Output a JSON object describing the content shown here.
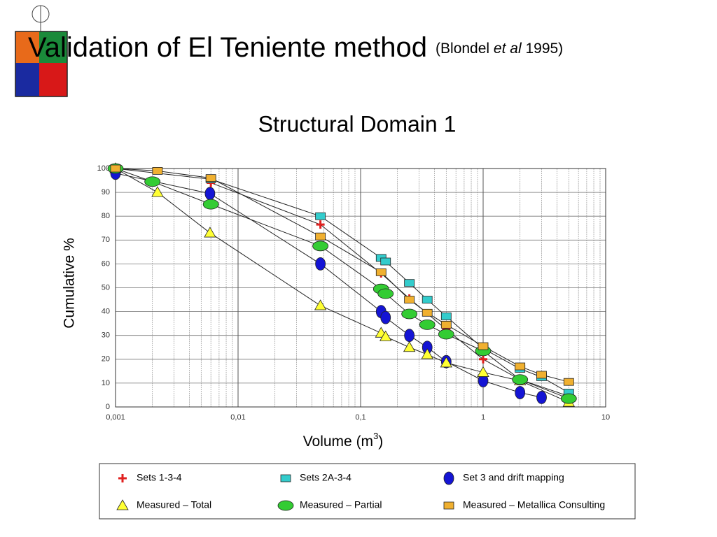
{
  "chart_data": {
    "type": "line",
    "title": "Validation of El Teniente method",
    "citation_pre": "(Blondel ",
    "citation_em": "et al",
    "citation_post": " 1995)",
    "subtitle": "Structural Domain 1",
    "y_label": "Cumulative %",
    "x_label": "Volume (m",
    "x_label_sup": "3",
    "x_label_end": ")",
    "x_log": true,
    "grid": true,
    "xlim": [
      0.001,
      10
    ],
    "xticks": [
      {
        "value": 0.001,
        "label": "0,001"
      },
      {
        "value": 0.01,
        "label": "0,01"
      },
      {
        "value": 0.1,
        "label": "0,1"
      },
      1,
      10
    ],
    "ylim": [
      0,
      100
    ],
    "yticks": [
      0,
      10,
      20,
      30,
      40,
      50,
      60,
      70,
      80,
      90,
      100
    ],
    "series": [
      {
        "name": "Sets 1-3-4",
        "color": "#e0201f",
        "marker": "plus",
        "x": [
          0.006,
          0.047,
          0.147,
          0.25,
          0.5,
          1,
          2,
          5
        ],
        "values": [
          94,
          76.5,
          56,
          45.5,
          32.5,
          20,
          11.5,
          4.5
        ]
      },
      {
        "name": "Sets 2A-3-4",
        "color": "#33cccc",
        "marker": "square",
        "x": [
          0.001,
          0.006,
          0.047,
          0.147,
          0.16,
          0.25,
          0.35,
          0.5,
          1,
          2,
          3,
          5
        ],
        "values": [
          100,
          95.5,
          80,
          62.5,
          61,
          52,
          45,
          38,
          24.5,
          16,
          12.5,
          6
        ]
      },
      {
        "name": "Set 3 and drift mapping",
        "color": "#1414d4",
        "marker": "ellipse-tall",
        "x": [
          0.001,
          0.0059,
          0.047,
          0.147,
          0.16,
          0.25,
          0.35,
          0.5,
          1,
          2,
          3
        ],
        "values": [
          98,
          89.5,
          60,
          40,
          37.5,
          30,
          25,
          19,
          11,
          6,
          4
        ]
      },
      {
        "name": "Measured – Total",
        "color": "#ffff33",
        "marker": "triangle",
        "x": [
          0.001,
          0.0022,
          0.0059,
          0.047,
          0.147,
          0.16,
          0.25,
          0.35,
          0.5,
          1,
          2,
          5
        ],
        "values": [
          100,
          90,
          73,
          42.5,
          31,
          29.5,
          25,
          22,
          18.5,
          14.5,
          11,
          2
        ]
      },
      {
        "name": "Measured – Partial",
        "color": "#33cc33",
        "marker": "ellipse-wide",
        "x": [
          0.001,
          0.002,
          0.006,
          0.047,
          0.147,
          0.16,
          0.25,
          0.35,
          0.5,
          1,
          2,
          5
        ],
        "values": [
          100,
          94.5,
          85,
          67.5,
          49.5,
          47.5,
          39,
          34.5,
          30.5,
          23.5,
          11.5,
          3.5
        ]
      },
      {
        "name": "Measured – Metallica Consulting",
        "color": "#f0b030",
        "marker": "square",
        "x": [
          0.001,
          0.0022,
          0.006,
          0.047,
          0.147,
          0.25,
          0.35,
          0.5,
          1,
          2,
          3,
          5
        ],
        "values": [
          100,
          99,
          96,
          71.5,
          56.5,
          45,
          39.5,
          34.5,
          25.5,
          17,
          13.5,
          10.5
        ]
      }
    ]
  }
}
